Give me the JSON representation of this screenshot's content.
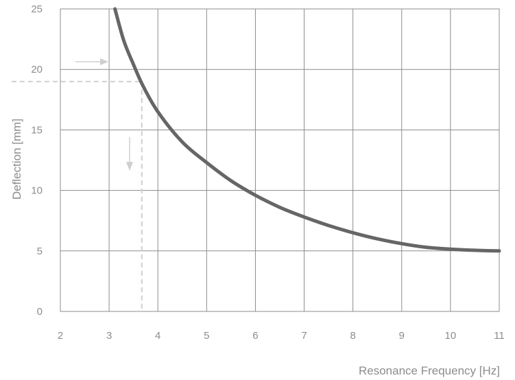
{
  "chart_data": {
    "type": "line",
    "title": "",
    "xlabel": "Resonance Frequency [Hz]",
    "ylabel": "Deflection [mm]",
    "xlim": [
      2,
      11
    ],
    "ylim": [
      0,
      25
    ],
    "x_ticks": [
      2,
      3,
      4,
      5,
      6,
      7,
      8,
      9,
      10,
      11
    ],
    "y_ticks": [
      0,
      5,
      10,
      15,
      20,
      25
    ],
    "grid": true,
    "legend": "none",
    "series": [
      {
        "x": [
          3.12,
          3.3,
          3.5,
          3.7,
          4.0,
          4.5,
          5.0,
          5.5,
          6.0,
          6.5,
          7.0,
          7.5,
          8.0,
          8.5,
          9.0,
          9.5,
          10.0,
          10.5,
          11.0
        ],
        "y": [
          25.0,
          22.4,
          20.4,
          18.6,
          16.5,
          14.0,
          12.3,
          10.8,
          9.6,
          8.6,
          7.8,
          7.1,
          6.5,
          6.0,
          5.6,
          5.3,
          5.15,
          5.05,
          5.0
        ],
        "color": "#666666"
      }
    ],
    "annotations": [
      {
        "type": "reference-line",
        "orientation": "horizontal",
        "value": 19.0,
        "x_from": 1.0,
        "x_to": 3.67
      },
      {
        "type": "reference-line",
        "orientation": "vertical",
        "value": 3.67,
        "y_from": 19.0,
        "y_to": 0
      },
      {
        "type": "arrow",
        "direction": "right"
      },
      {
        "type": "arrow",
        "direction": "down"
      }
    ],
    "colors": {
      "curve": "#666666",
      "grid": "#8c8c8c",
      "guide": "#cfcfcf",
      "text": "#8c8c8c"
    }
  }
}
